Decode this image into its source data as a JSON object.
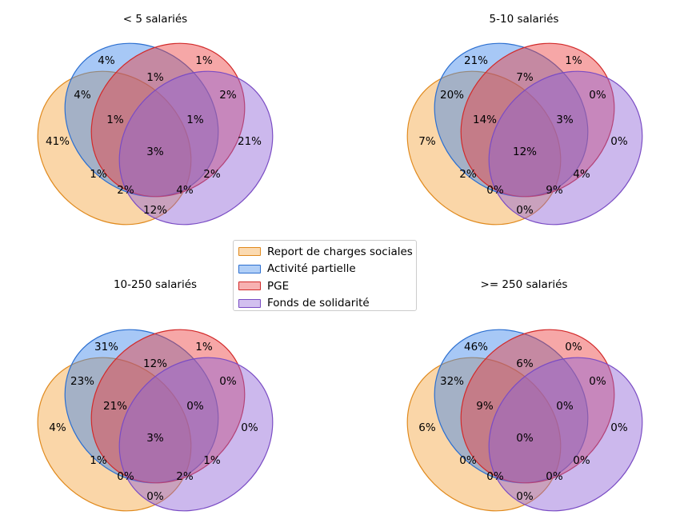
{
  "sets": [
    {
      "key": "A",
      "name": "Report de charges sociales",
      "fill": "#f5a33d",
      "stroke": "#e08a1e"
    },
    {
      "key": "B",
      "name": "Activité partielle",
      "fill": "#3c86ec",
      "stroke": "#2c6fd0"
    },
    {
      "key": "C",
      "name": "PGE",
      "fill": "#ec3c3c",
      "stroke": "#d22a2a"
    },
    {
      "key": "D",
      "name": "Fonds de solidarité",
      "fill": "#8f62d6",
      "stroke": "#7a4cc4"
    }
  ],
  "charts": [
    {
      "title": "< 5 salariés",
      "regions": {
        "A": "41%",
        "B": "4%",
        "C": "1%",
        "D": "21%",
        "AB": "4%",
        "BC": "1%",
        "CD": "2%",
        "AC": "1%",
        "AD": "12%",
        "BD": "2%",
        "ABC": "1%",
        "BCD": "1%",
        "ACD": "2%",
        "ABD": "4%",
        "ABCD": "3%"
      }
    },
    {
      "title": "5-10 salariés",
      "regions": {
        "A": "7%",
        "B": "21%",
        "C": "1%",
        "D": "0%",
        "AB": "20%",
        "BC": "7%",
        "CD": "0%",
        "AC": "2%",
        "AD": "0%",
        "BD": "4%",
        "ABC": "14%",
        "BCD": "3%",
        "ACD": "0%",
        "ABD": "9%",
        "ABCD": "12%"
      }
    },
    {
      "title": "10-250 salariés",
      "regions": {
        "A": "4%",
        "B": "31%",
        "C": "1%",
        "D": "0%",
        "AB": "23%",
        "BC": "12%",
        "CD": "0%",
        "AC": "1%",
        "AD": "0%",
        "BD": "1%",
        "ABC": "21%",
        "BCD": "0%",
        "ACD": "0%",
        "ABD": "2%",
        "ABCD": "3%"
      }
    },
    {
      "title": ">= 250 salariés",
      "regions": {
        "A": "6%",
        "B": "46%",
        "C": "0%",
        "D": "0%",
        "AB": "32%",
        "BC": "6%",
        "CD": "0%",
        "AC": "0%",
        "AD": "0%",
        "BD": "0%",
        "ABC": "9%",
        "BCD": "0%",
        "ACD": "0%",
        "ABD": "0%",
        "ABCD": "0%"
      }
    }
  ]
}
